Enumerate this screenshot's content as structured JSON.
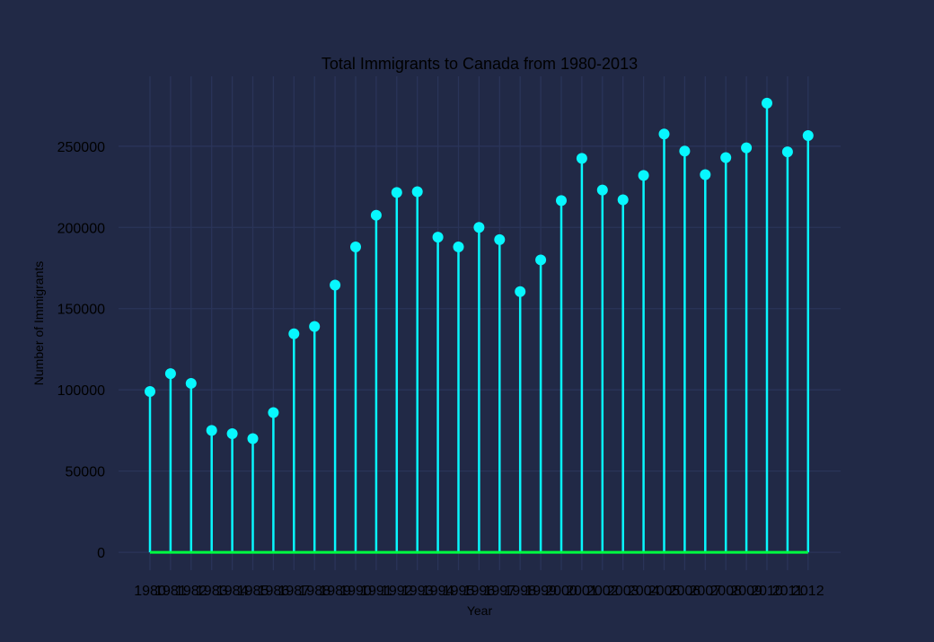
{
  "chart_data": {
    "type": "stem",
    "title": "Total Immigrants to Canada from 1980-2013",
    "xlabel": "Year",
    "ylabel": "Number of Immigrants",
    "x": [
      1980,
      1981,
      1982,
      1983,
      1984,
      1985,
      1986,
      1987,
      1988,
      1989,
      1990,
      1991,
      1992,
      1993,
      1994,
      1995,
      1996,
      1997,
      1998,
      1999,
      2000,
      2001,
      2002,
      2003,
      2004,
      2005,
      2006,
      2007,
      2008,
      2009,
      2010,
      2011,
      2012
    ],
    "x_tick_labels": [
      "1980",
      "1981",
      "1982",
      "1983",
      "1984",
      "1985",
      "1986",
      "1987",
      "1988",
      "1989",
      "1990",
      "1991",
      "1992",
      "1993",
      "1994",
      "1995",
      "1996",
      "1997",
      "1998",
      "1999",
      "2000",
      "2001",
      "2002",
      "2003",
      "2004",
      "2005",
      "2006",
      "2007",
      "2008",
      "2009",
      "2010",
      "2011",
      "2012"
    ],
    "values": [
      99000,
      110000,
      104000,
      75000,
      73000,
      70000,
      86000,
      134500,
      139000,
      164500,
      188000,
      207500,
      221500,
      222000,
      194000,
      188000,
      200000,
      192500,
      160500,
      180000,
      216500,
      242500,
      223000,
      217000,
      232000,
      257500,
      247000,
      232500,
      243000,
      249000,
      276500,
      246500,
      256500
    ],
    "ylim": [
      -11000,
      293000
    ],
    "y_ticks": [
      0,
      50000,
      100000,
      150000,
      200000,
      250000
    ],
    "y_tick_labels": [
      "0",
      "50000",
      "100000",
      "150000",
      "200000",
      "250000"
    ],
    "grid": true,
    "colors": {
      "background": "#212946",
      "grid": "#2A3459",
      "stem": "#08F7FE",
      "marker": "#08F7FE",
      "baseline": "#00FF41"
    }
  }
}
